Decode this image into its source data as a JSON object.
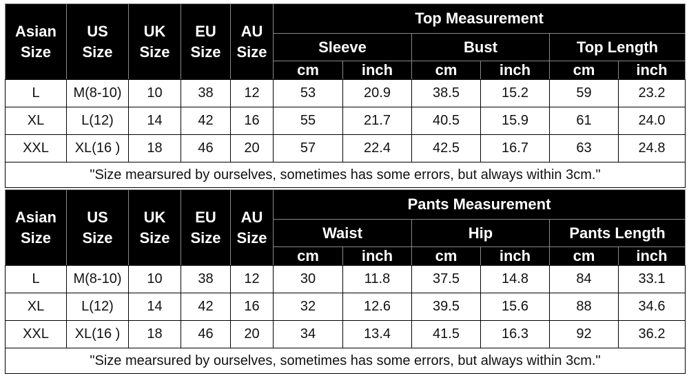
{
  "tables": [
    {
      "size_columns": [
        "Asian Size",
        "US Size",
        "UK Size",
        "EU Size",
        "AU Size"
      ],
      "title": "Top Measurement",
      "groups": [
        "Sleeve",
        "Bust",
        "Top Length"
      ],
      "units": [
        "cm",
        "inch",
        "cm",
        "inch",
        "cm",
        "inch"
      ],
      "rows": [
        [
          "L",
          "M(8-10)",
          "10",
          "38",
          "12",
          "53",
          "20.9",
          "38.5",
          "15.2",
          "59",
          "23.2"
        ],
        [
          "XL",
          "L(12)",
          "14",
          "42",
          "16",
          "55",
          "21.7",
          "40.5",
          "15.9",
          "61",
          "24.0"
        ],
        [
          "XXL",
          "XL(16 )",
          "18",
          "46",
          "20",
          "57",
          "22.4",
          "42.5",
          "16.7",
          "63",
          "24.8"
        ]
      ],
      "note": "\"Size mearsured by ourselves, sometimes has some errors, but always within 3cm.\""
    },
    {
      "size_columns": [
        "Asian Size",
        "US Size",
        "UK Size",
        "EU Size",
        "AU Size"
      ],
      "title": "Pants Measurement",
      "groups": [
        "Waist",
        "Hip",
        "Pants Length"
      ],
      "units": [
        "cm",
        "inch",
        "cm",
        "inch",
        "cm",
        "inch"
      ],
      "rows": [
        [
          "L",
          "M(8-10)",
          "10",
          "38",
          "12",
          "30",
          "11.8",
          "37.5",
          "14.8",
          "84",
          "33.1"
        ],
        [
          "XL",
          "L(12)",
          "14",
          "42",
          "16",
          "32",
          "12.6",
          "39.5",
          "15.6",
          "88",
          "34.6"
        ],
        [
          "XXL",
          "XL(16 )",
          "18",
          "46",
          "20",
          "34",
          "13.4",
          "41.5",
          "16.3",
          "92",
          "36.2"
        ]
      ],
      "note": "\"Size mearsured by ourselves, sometimes has some errors, but always within 3cm.\""
    }
  ]
}
